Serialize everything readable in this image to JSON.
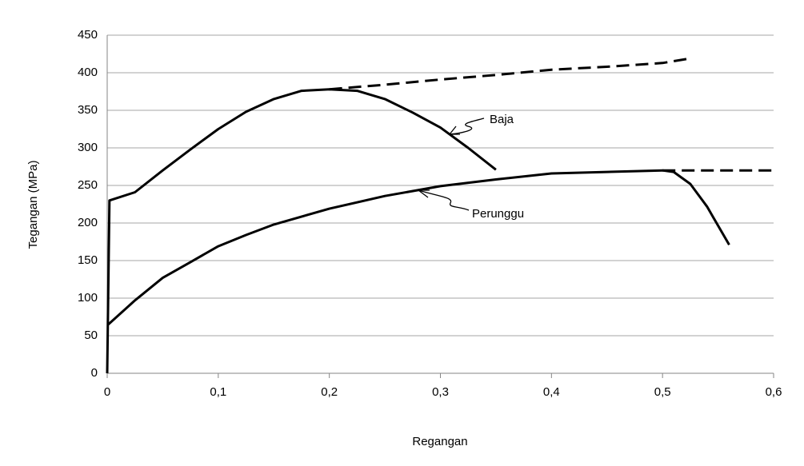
{
  "chart_data": {
    "type": "line",
    "x_label": "Regangan",
    "y_label": "Tegangan (MPa)",
    "xlim": [
      0,
      0.6
    ],
    "xticks": [
      0,
      {
        "value": 0.1,
        "label": "0,1"
      },
      {
        "value": 0.2,
        "label": "0,2"
      },
      {
        "value": 0.3,
        "label": "0,3"
      },
      {
        "value": 0.4,
        "label": "0,4"
      },
      {
        "value": 0.5,
        "label": "0,5"
      },
      {
        "value": 0.6,
        "label": "0,6"
      }
    ],
    "ylim": [
      0,
      450
    ],
    "yticks": [
      0,
      50,
      100,
      150,
      200,
      250,
      300,
      350,
      400,
      450
    ],
    "grid": true,
    "series": [
      {
        "name": "Baja",
        "color": "#000000",
        "dashed": false,
        "x": [
          0,
          0.002,
          0.025,
          0.05,
          0.075,
          0.1,
          0.125,
          0.15,
          0.175,
          0.2,
          0.225,
          0.25,
          0.275,
          0.3,
          0.325,
          0.35
        ],
        "values": [
          0,
          230,
          241,
          270,
          298,
          325,
          348,
          365,
          376,
          378,
          376,
          365,
          347,
          327,
          300,
          271
        ]
      },
      {
        "color": "#000000",
        "dashed": true,
        "x": [
          0.2,
          0.25,
          0.3,
          0.35,
          0.4,
          0.45,
          0.5,
          0.525
        ],
        "values": [
          378,
          384,
          391,
          397,
          404,
          408,
          413,
          419
        ]
      },
      {
        "name": "Perunggu",
        "color": "#000000",
        "dashed": false,
        "x": [
          0.001,
          0.025,
          0.05,
          0.075,
          0.1,
          0.125,
          0.15,
          0.2,
          0.25,
          0.3,
          0.35,
          0.4,
          0.45,
          0.5,
          0.51,
          0.525,
          0.54,
          0.56
        ],
        "values": [
          65,
          97,
          127,
          148,
          169,
          184,
          198,
          219,
          236,
          249,
          258,
          266,
          268,
          270,
          268,
          252,
          222,
          171
        ]
      },
      {
        "color": "#000000",
        "dashed": true,
        "x": [
          0.5,
          0.6
        ],
        "values": [
          270,
          270
        ]
      }
    ]
  }
}
